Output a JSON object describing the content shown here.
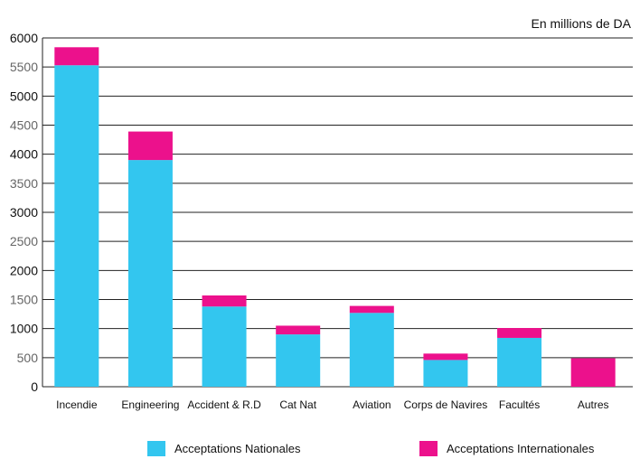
{
  "chart_data": {
    "type": "bar",
    "stacked": true,
    "unit_label": "En millions de DA",
    "categories": [
      "Incendie",
      "Engineering",
      "Accident  & R.D",
      "Cat Nat",
      "Aviation",
      "Corps de Navires",
      "Facultés",
      "Autres"
    ],
    "series": [
      {
        "name": "Acceptations Nationales",
        "color": "#33c6ef",
        "values": [
          5530,
          3900,
          1380,
          900,
          1270,
          460,
          840,
          0
        ]
      },
      {
        "name": "Acceptations Internationales",
        "color": "#ec118c",
        "values": [
          310,
          490,
          190,
          150,
          120,
          110,
          170,
          490
        ]
      }
    ],
    "yticks": [
      "0",
      "500",
      "1000",
      "1500",
      "2000",
      "2500",
      "3000",
      "3500",
      "4000",
      "4500",
      "5000",
      "5500",
      "6000"
    ],
    "ylim": [
      0,
      6000
    ],
    "grid": true,
    "legend_position": "bottom"
  }
}
